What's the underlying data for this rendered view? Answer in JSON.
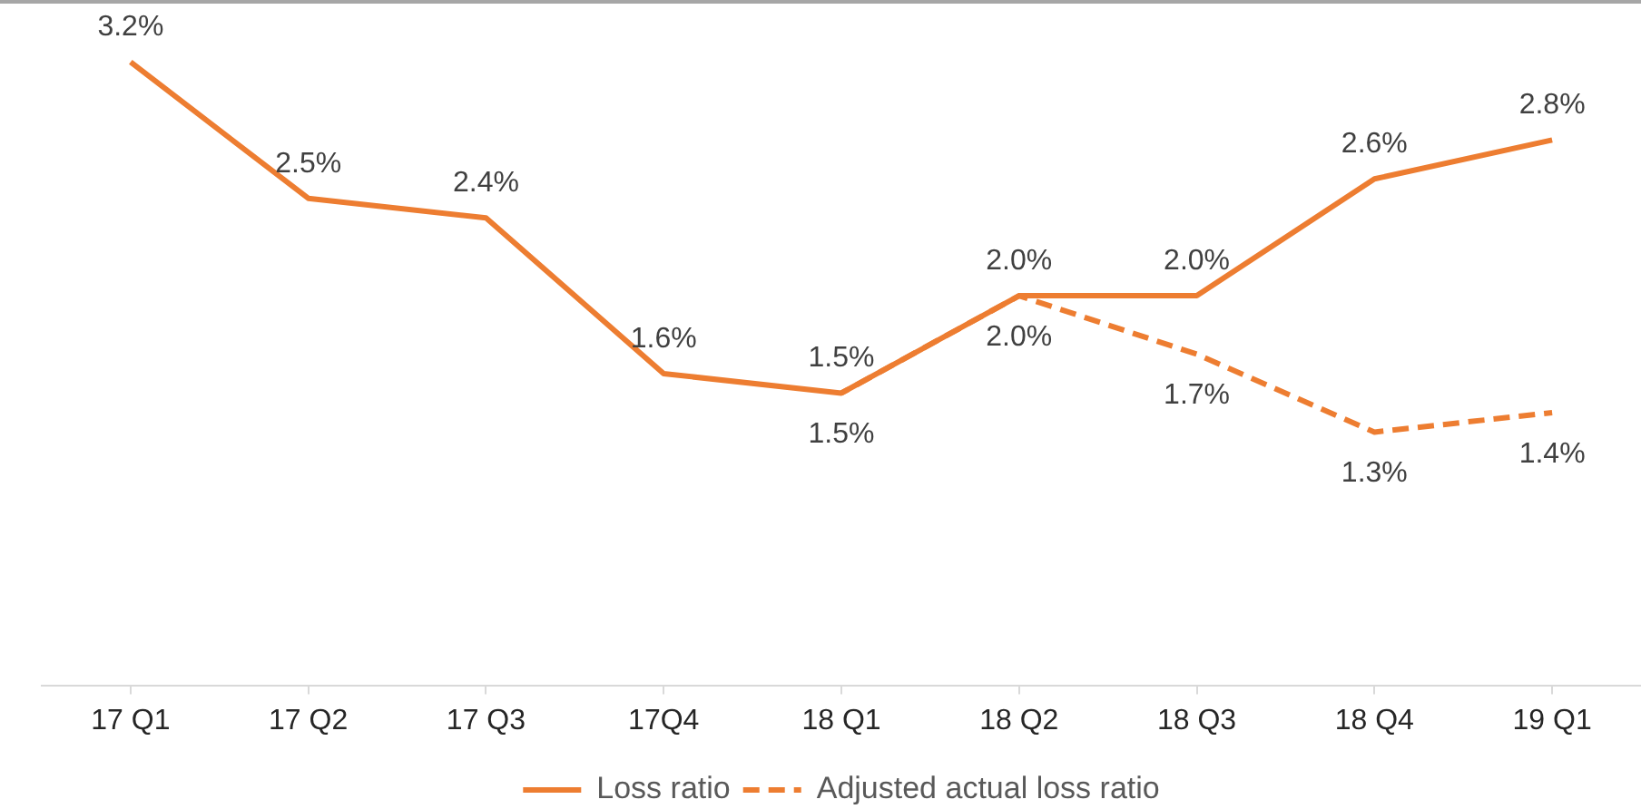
{
  "chart_data": {
    "type": "line",
    "categories": [
      "17 Q1",
      "17 Q2",
      "17 Q3",
      "17Q4",
      "18 Q1",
      "18 Q2",
      "18 Q3",
      "18 Q4",
      "19 Q1"
    ],
    "series": [
      {
        "name": "Loss ratio",
        "color": "#ed7d31",
        "line_style": "solid",
        "values": [
          3.2,
          2.5,
          2.4,
          1.6,
          1.5,
          2.0,
          2.0,
          2.6,
          2.8
        ],
        "value_labels": [
          "3.2%",
          "2.5%",
          "2.4%",
          "1.6%",
          "1.5%",
          "2.0%",
          "2.0%",
          "2.6%",
          "2.8%"
        ]
      },
      {
        "name": "Adjusted actual loss ratio",
        "color": "#ed7d31",
        "line_style": "dashed",
        "values": [
          null,
          null,
          null,
          null,
          1.5,
          2.0,
          1.7,
          1.3,
          1.4
        ],
        "value_labels": [
          null,
          null,
          null,
          null,
          "1.5%",
          "2.0%",
          "1.7%",
          "1.3%",
          "1.4%"
        ]
      }
    ],
    "ylim": [
      0,
      3.5
    ],
    "tick_labels": "x",
    "legend": "bottom",
    "marker": "none"
  }
}
